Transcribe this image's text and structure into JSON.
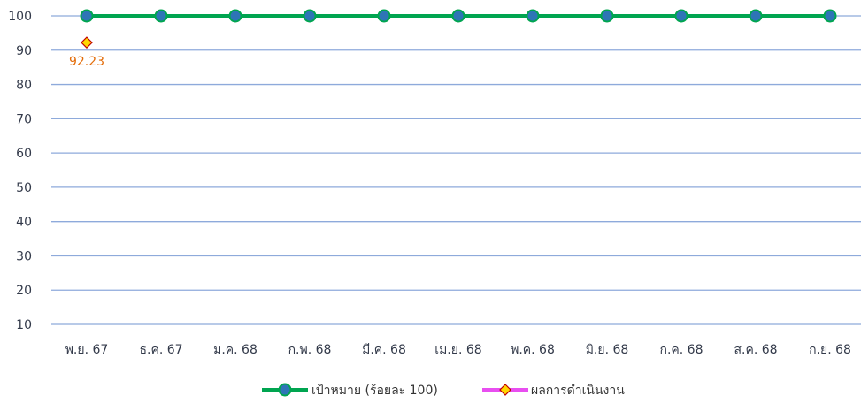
{
  "chart_data": {
    "type": "line",
    "categories": [
      "พ.ย. 67",
      "ธ.ค. 67",
      "ม.ค. 68",
      "ก.พ. 68",
      "มี.ค. 68",
      "เม.ย. 68",
      "พ.ค. 68",
      "มิ.ย. 68",
      "ก.ค. 68",
      "ส.ค. 68",
      "ก.ย. 68"
    ],
    "yticks": [
      10,
      20,
      30,
      40,
      50,
      60,
      70,
      80,
      90,
      100
    ],
    "ylim": [
      10,
      100
    ],
    "grid": true,
    "legend_position": "bottom",
    "series": [
      {
        "name": "เป้าหมาย (ร้อยละ 100)",
        "values": [
          100,
          100,
          100,
          100,
          100,
          100,
          100,
          100,
          100,
          100,
          100
        ],
        "color": "#00a550",
        "marker": "circle",
        "marker_color": "#2e75b6"
      },
      {
        "name": "ผลการดำเนินงาน",
        "values": [
          92.23,
          null,
          null,
          null,
          null,
          null,
          null,
          null,
          null,
          null,
          null
        ],
        "data_labels": [
          "92.23"
        ],
        "color": "#e84ef0",
        "marker": "diamond",
        "marker_color": "#ffd700",
        "label_color": "#e36c09"
      }
    ]
  }
}
